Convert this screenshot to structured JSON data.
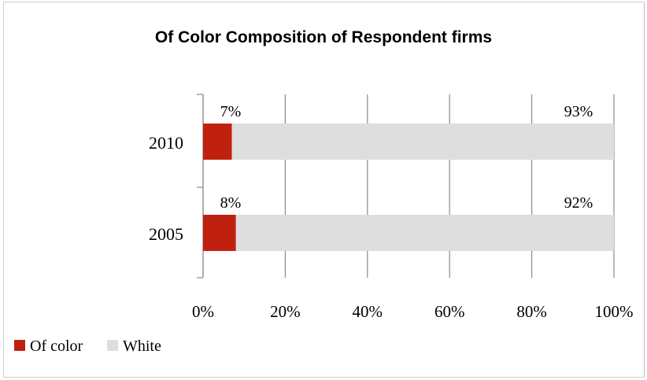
{
  "chart_data": {
    "type": "bar",
    "orientation": "horizontal",
    "stacked": true,
    "title": "Of Color Composition of Respondent firms",
    "categories": [
      "2010",
      "2005"
    ],
    "series": [
      {
        "name": "Of color",
        "values": [
          7,
          8
        ],
        "labels": [
          "7%",
          "8%"
        ],
        "color": "#c0210f"
      },
      {
        "name": "White",
        "values": [
          93,
          92
        ],
        "labels": [
          "93%",
          "92%"
        ],
        "color": "#dedede"
      }
    ],
    "xlim": [
      0,
      100
    ],
    "xticks": [
      0,
      20,
      40,
      60,
      80,
      100
    ],
    "xtick_labels": [
      "0%",
      "20%",
      "40%",
      "60%",
      "80%",
      "100%"
    ],
    "grid": true,
    "legend_position": "bottom-left"
  }
}
